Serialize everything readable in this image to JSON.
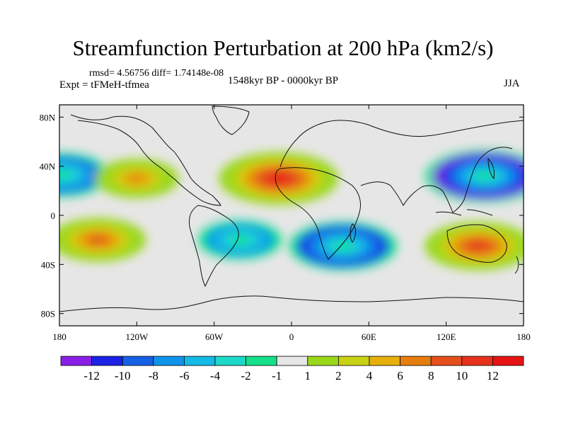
{
  "header": {
    "title": "Streamfunction Perturbation at 200 hPa (km2/s)",
    "rmsd_line": "rmsd= 4.56756 diff= 1.74148e-08",
    "experiment": "Expt = tFMeH-tfmea",
    "period": "1548kyr BP - 0000kyr BP",
    "season": "JJA"
  },
  "chart_data": {
    "type": "heatmap",
    "title": "Streamfunction Perturbation at 200 hPa (km2/s)",
    "x_ticks": [
      "180",
      "120W",
      "60W",
      "0",
      "60E",
      "120E",
      "180"
    ],
    "y_ticks": [
      "80N",
      "40N",
      "0",
      "40S",
      "80S"
    ],
    "colorbar": {
      "labels": [
        "-12",
        "-10",
        "-8",
        "-6",
        "-4",
        "-2",
        "-1",
        "1",
        "2",
        "4",
        "6",
        "8",
        "10",
        "12"
      ],
      "colors": [
        "#8a1ee6",
        "#1b22e6",
        "#1660e6",
        "#0f94ea",
        "#13bbe6",
        "#1ed8c8",
        "#14e08a",
        "#e6e6e6",
        "#9ad81a",
        "#c8d214",
        "#e6b00c",
        "#e67e0e",
        "#e6501c",
        "#e6321c",
        "#e61414"
      ]
    },
    "features": [
      {
        "lon": -10,
        "lat": 30,
        "value": 12
      },
      {
        "lon": 150,
        "lat": 32,
        "value": -12
      },
      {
        "lon": 40,
        "lat": -25,
        "value": -10
      },
      {
        "lon": 145,
        "lat": -25,
        "value": 10
      },
      {
        "lon": -150,
        "lat": -20,
        "value": 8
      },
      {
        "lon": -178,
        "lat": 33,
        "value": -8
      },
      {
        "lon": -120,
        "lat": 30,
        "value": 6
      },
      {
        "lon": -40,
        "lat": -20,
        "value": -6
      }
    ]
  }
}
